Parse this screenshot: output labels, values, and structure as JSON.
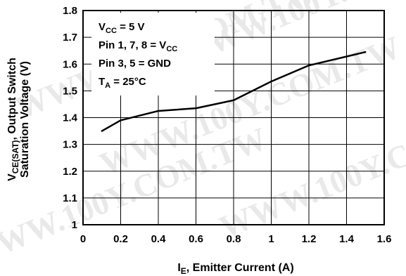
{
  "watermark": "WWW.100Y.COM.TW",
  "chart_data": {
    "type": "line",
    "x": [
      0.1,
      0.2,
      0.4,
      0.6,
      0.8,
      1.0,
      1.2,
      1.5
    ],
    "series": [
      {
        "values": [
          1.35,
          1.39,
          1.425,
          1.435,
          1.465,
          1.535,
          1.595,
          1.645
        ]
      }
    ],
    "xlim": [
      0,
      1.6
    ],
    "ylim": [
      1.0,
      1.8
    ],
    "xticks": [
      "0",
      "0.2",
      "0.4",
      "0.6",
      "0.8",
      "1",
      "1.2",
      "1.4",
      "1.6"
    ],
    "yticks": [
      "1",
      "1.1",
      "1.2",
      "1.3",
      "1.4",
      "1.5",
      "1.6",
      "1.7",
      "1.8"
    ],
    "xlabel": {
      "main": "I",
      "sub": "E",
      "rest": ", Emitter Current (A)"
    },
    "ylabel": {
      "line1_main": "V",
      "line1_sub": "CE(SAT)",
      "line1_rest": ", Output Switch",
      "line2": "Saturation Voltage (V)"
    },
    "grid": true,
    "conditions": [
      {
        "main": "V",
        "sub": "CC",
        "rest": " = 5 V",
        "sub_last": false
      },
      {
        "main": "Pin 1, 7, 8 = V",
        "sub": "CC",
        "rest": "",
        "sub_last": true
      },
      {
        "main": "Pin 3, 5 = GND",
        "sub": "",
        "rest": "",
        "sub_last": false
      },
      {
        "main": "T",
        "sub": "A",
        "rest": " = 25°C",
        "sub_last": false
      }
    ]
  }
}
